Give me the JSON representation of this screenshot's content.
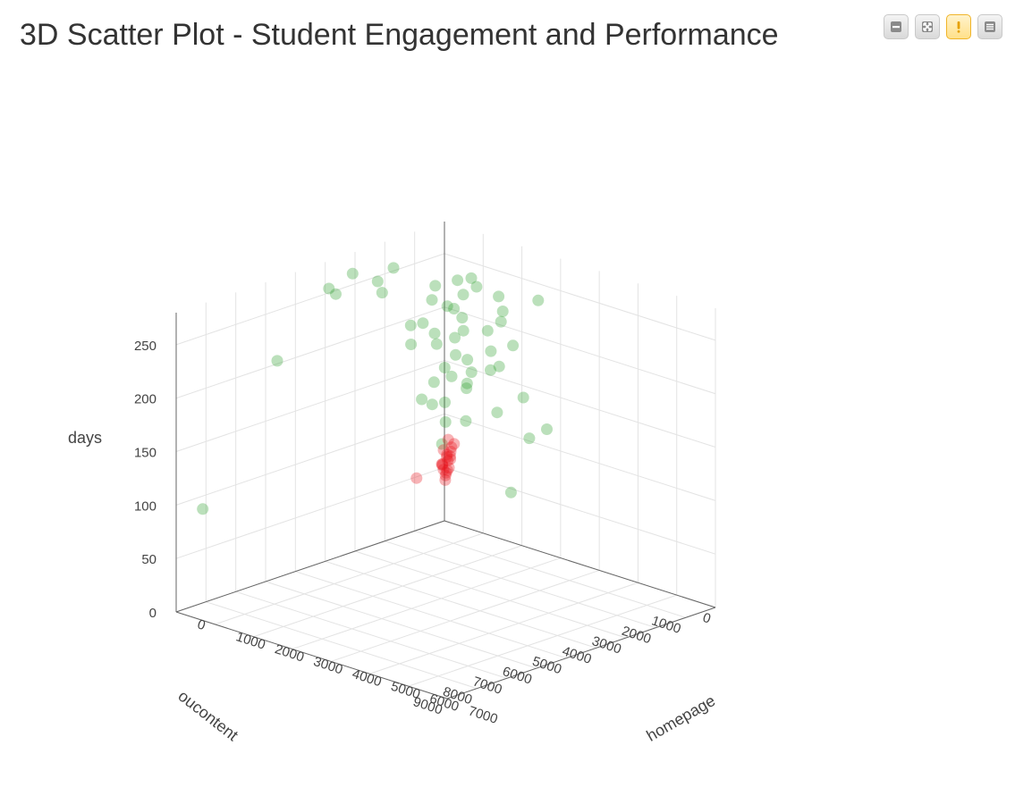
{
  "title": "3D Scatter Plot - Student Engagement and Performance",
  "toolbar": {
    "icons": [
      "minimize-icon",
      "maximize-icon",
      "warning-icon",
      "menu-icon"
    ]
  },
  "colors": {
    "accent_green": "#2ca02c",
    "accent_red": "#e8121c",
    "warning": "#f0b429",
    "grid": "#e3e3e3",
    "axis": "#666666"
  },
  "chart_data": {
    "type": "scatter",
    "subtype": "3d",
    "title": "3D Scatter Plot - Student Engagement and Performance",
    "axes": {
      "x": {
        "label": "oucontent",
        "range": [
          0,
          9000
        ],
        "ticks": [
          "0",
          "1000",
          "2000",
          "3000",
          "4000",
          "5000",
          "6000",
          "7000",
          "8000",
          "9000"
        ]
      },
      "y": {
        "label": "homepage",
        "range": [
          0,
          7000
        ],
        "ticks": [
          "0",
          "1000",
          "2000",
          "3000",
          "4000",
          "5000",
          "6000",
          "7000"
        ]
      },
      "z": {
        "label": "days",
        "range": [
          0,
          280
        ],
        "ticks": [
          "0",
          "50",
          "100",
          "150",
          "200",
          "250"
        ]
      }
    },
    "grid": true,
    "legend": "none",
    "series": [
      {
        "color": "#2ca02c",
        "points": [
          [
            300,
            500,
            180
          ],
          [
            450,
            420,
            210
          ],
          [
            600,
            800,
            240
          ],
          [
            700,
            300,
            230
          ],
          [
            250,
            650,
            200
          ],
          [
            900,
            700,
            160
          ],
          [
            800,
            1200,
            150
          ],
          [
            500,
            1500,
            200
          ],
          [
            350,
            1100,
            235
          ],
          [
            1200,
            600,
            225
          ],
          [
            1500,
            900,
            200
          ],
          [
            2100,
            300,
            260
          ],
          [
            2500,
            200,
            250
          ],
          [
            3000,
            700,
            250
          ],
          [
            3600,
            400,
            270
          ],
          [
            4200,
            250,
            260
          ],
          [
            4100,
            350,
            255
          ],
          [
            6000,
            300,
            210
          ],
          [
            8500,
            300,
            95
          ],
          [
            2600,
            2700,
            195
          ],
          [
            3000,
            3500,
            210
          ],
          [
            3200,
            2400,
            130
          ],
          [
            4000,
            4800,
            120
          ],
          [
            2000,
            3000,
            240
          ],
          [
            1300,
            2400,
            250
          ],
          [
            900,
            2200,
            230
          ],
          [
            1600,
            1800,
            160
          ],
          [
            200,
            2800,
            120
          ],
          [
            400,
            2500,
            110
          ],
          [
            700,
            1900,
            130
          ],
          [
            150,
            300,
            140
          ],
          [
            220,
            180,
            115
          ],
          [
            120,
            120,
            95
          ],
          [
            80,
            350,
            160
          ],
          [
            500,
            1800,
            170
          ],
          [
            600,
            2500,
            150
          ],
          [
            300,
            2000,
            190
          ],
          [
            1100,
            1400,
            120
          ],
          [
            1800,
            800,
            140
          ],
          [
            400,
            900,
            165
          ],
          [
            350,
            760,
            190
          ],
          [
            200,
            400,
            205
          ],
          [
            650,
            300,
            175
          ],
          [
            1000,
            500,
            145
          ],
          [
            150,
            600,
            220
          ],
          [
            270,
            900,
            240
          ],
          [
            130,
            1300,
            175
          ],
          [
            800,
            300,
            120
          ],
          [
            2300,
            900,
            215
          ],
          [
            2800,
            1600,
            230
          ],
          [
            1400,
            3500,
            260
          ],
          [
            1900,
            600,
            190
          ]
        ]
      },
      {
        "color": "#e8121c",
        "points": [
          [
            100,
            150,
            50
          ],
          [
            150,
            200,
            60
          ],
          [
            200,
            100,
            55
          ],
          [
            250,
            250,
            65
          ],
          [
            180,
            300,
            70
          ],
          [
            120,
            120,
            45
          ],
          [
            300,
            180,
            58
          ],
          [
            220,
            350,
            75
          ],
          [
            160,
            220,
            80
          ],
          [
            280,
            280,
            68
          ],
          [
            240,
            160,
            52
          ],
          [
            140,
            260,
            62
          ],
          [
            90,
            90,
            40
          ],
          [
            330,
            230,
            72
          ],
          [
            190,
            190,
            49
          ],
          [
            210,
            310,
            66
          ],
          [
            260,
            130,
            57
          ],
          [
            170,
            380,
            78
          ],
          [
            110,
            200,
            53
          ],
          [
            1000,
            50,
            50
          ]
        ]
      }
    ]
  }
}
